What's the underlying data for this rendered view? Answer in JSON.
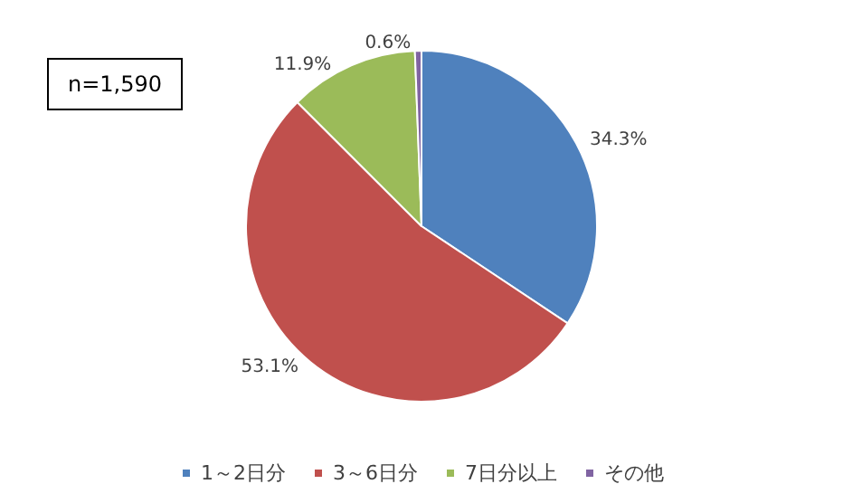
{
  "chart_data": {
    "type": "pie",
    "categories": [
      "1～2日分",
      "3～6日分",
      "7日分以上",
      "その他"
    ],
    "values": [
      34.3,
      53.1,
      11.9,
      0.6
    ],
    "colors": [
      "#4f81bd",
      "#c0504d",
      "#9bbb59",
      "#8064a2"
    ],
    "value_labels": [
      "34.3%",
      "53.1%",
      "11.9%",
      "0.6%"
    ],
    "annotations": [
      "n=1,590"
    ],
    "legend": "bottom"
  }
}
